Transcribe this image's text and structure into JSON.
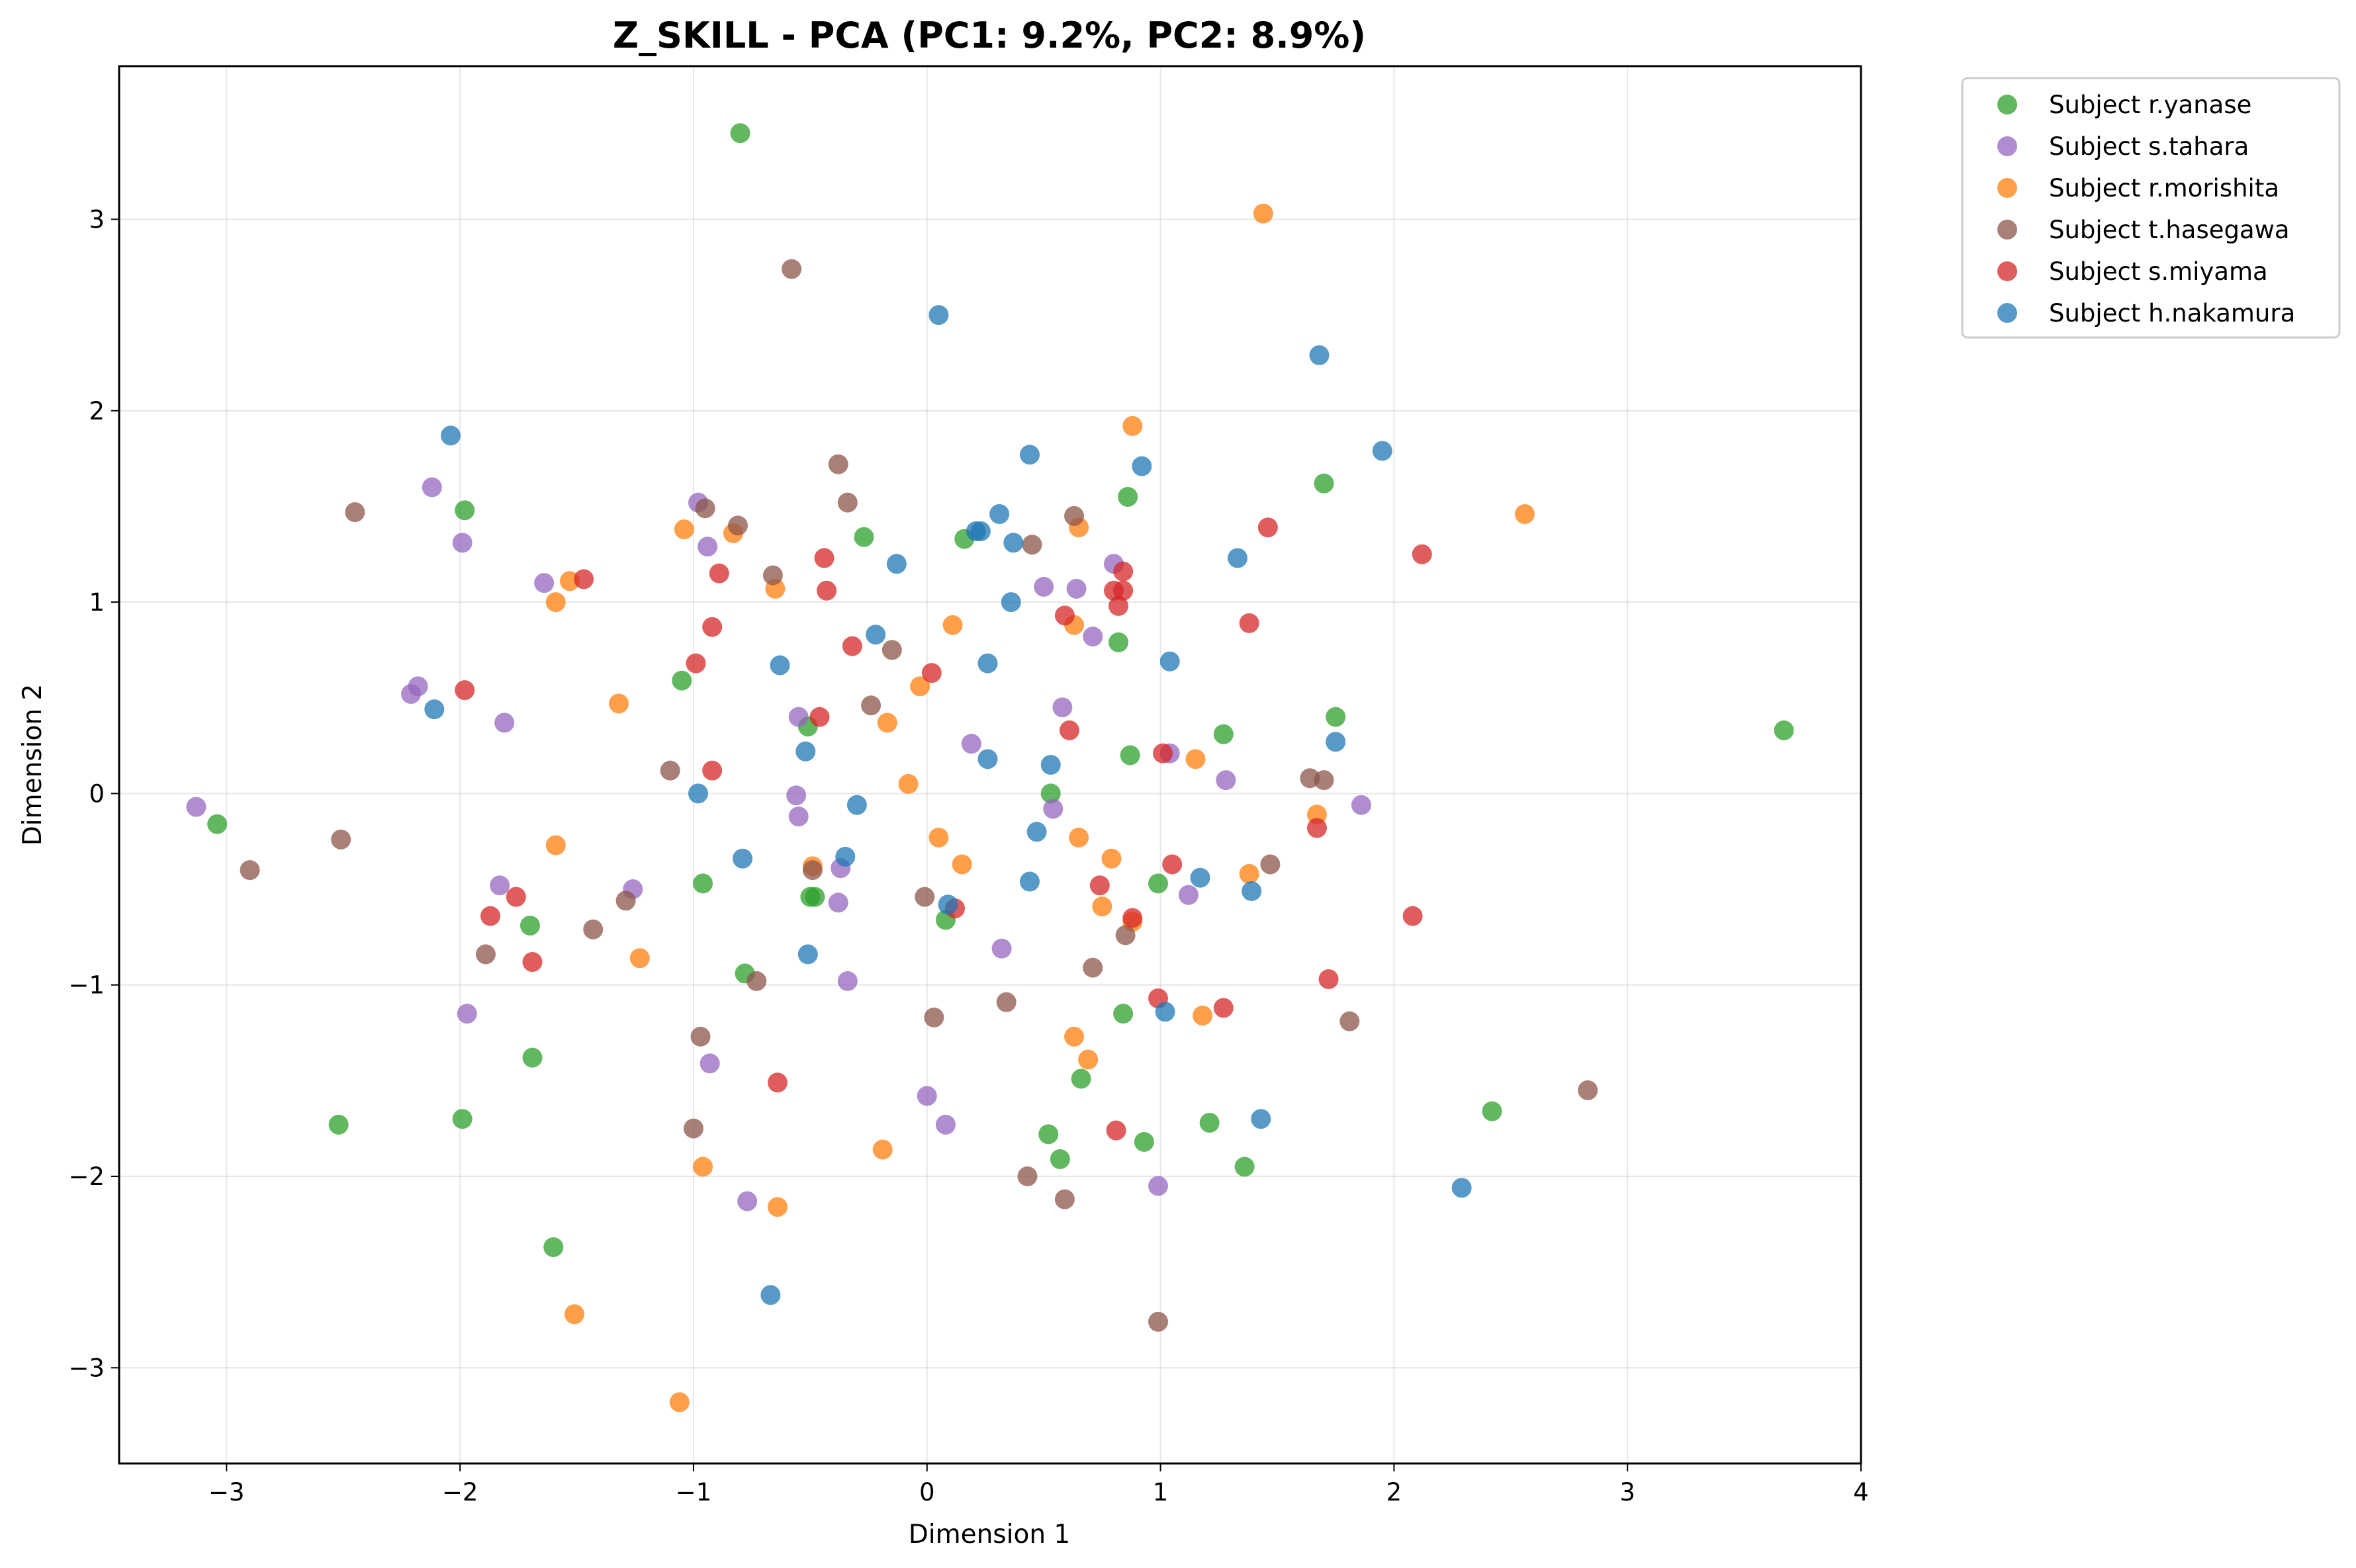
{
  "chart_data": {
    "type": "scatter",
    "title": "Z_SKILL - PCA (PC1: 9.2%, PC2: 8.9%)",
    "xlabel": "Dimension 1",
    "ylabel": "Dimension 2",
    "xlim": [
      -3.46,
      4.0
    ],
    "ylim": [
      -3.5,
      3.8
    ],
    "xticks": [
      -3,
      -2,
      -1,
      0,
      1,
      2,
      3,
      4
    ],
    "yticks": [
      -3,
      -2,
      -1,
      0,
      1,
      2,
      3
    ],
    "xtick_labels": [
      "−3",
      "−2",
      "−1",
      "0",
      "1",
      "2",
      "3",
      "4"
    ],
    "ytick_labels": [
      "−3",
      "−2",
      "−1",
      "0",
      "1",
      "2",
      "3"
    ],
    "grid": true,
    "legend_placement": "outside top-right",
    "series": [
      {
        "name": "Subject r.yanase",
        "color": "#2ca02c",
        "points": [
          [
            -0.8,
            3.45
          ],
          [
            -1.98,
            1.48
          ],
          [
            -0.27,
            1.34
          ],
          [
            0.16,
            1.33
          ],
          [
            0.86,
            1.55
          ],
          [
            1.7,
            1.62
          ],
          [
            0.82,
            0.79
          ],
          [
            -1.05,
            0.59
          ],
          [
            -0.51,
            0.35
          ],
          [
            0.87,
            0.2
          ],
          [
            1.27,
            0.31
          ],
          [
            1.75,
            0.4
          ],
          [
            3.67,
            0.33
          ],
          [
            -3.04,
            -0.16
          ],
          [
            0.53,
            0.0
          ],
          [
            -0.96,
            -0.47
          ],
          [
            -0.5,
            -0.54
          ],
          [
            -0.48,
            -0.54
          ],
          [
            0.08,
            -0.66
          ],
          [
            0.99,
            -0.47
          ],
          [
            -1.7,
            -0.69
          ],
          [
            -0.78,
            -0.94
          ],
          [
            0.84,
            -1.15
          ],
          [
            -1.69,
            -1.38
          ],
          [
            0.66,
            -1.49
          ],
          [
            -2.52,
            -1.73
          ],
          [
            -1.99,
            -1.7
          ],
          [
            0.52,
            -1.78
          ],
          [
            0.57,
            -1.91
          ],
          [
            0.93,
            -1.82
          ],
          [
            1.21,
            -1.72
          ],
          [
            1.36,
            -1.95
          ],
          [
            2.42,
            -1.66
          ],
          [
            -1.6,
            -2.37
          ]
        ]
      },
      {
        "name": "Subject s.tahara",
        "color": "#9467bd",
        "points": [
          [
            -2.12,
            1.6
          ],
          [
            -0.98,
            1.52
          ],
          [
            -1.99,
            1.31
          ],
          [
            -0.94,
            1.29
          ],
          [
            -1.64,
            1.1
          ],
          [
            0.5,
            1.08
          ],
          [
            0.64,
            1.07
          ],
          [
            0.8,
            1.2
          ],
          [
            0.71,
            0.82
          ],
          [
            -2.18,
            0.56
          ],
          [
            -2.21,
            0.52
          ],
          [
            -1.81,
            0.37
          ],
          [
            0.58,
            0.45
          ],
          [
            0.19,
            0.26
          ],
          [
            1.04,
            0.21
          ],
          [
            1.28,
            0.07
          ],
          [
            1.86,
            -0.06
          ],
          [
            -3.13,
            -0.07
          ],
          [
            -0.56,
            -0.01
          ],
          [
            -0.55,
            -0.12
          ],
          [
            0.54,
            -0.08
          ],
          [
            -0.55,
            0.4
          ],
          [
            -0.37,
            -0.39
          ],
          [
            -1.83,
            -0.48
          ],
          [
            -1.26,
            -0.5
          ],
          [
            -0.38,
            -0.57
          ],
          [
            1.12,
            -0.53
          ],
          [
            0.32,
            -0.81
          ],
          [
            -0.34,
            -0.98
          ],
          [
            -1.97,
            -1.15
          ],
          [
            -0.93,
            -1.41
          ],
          [
            0.0,
            -1.58
          ],
          [
            0.08,
            -1.73
          ],
          [
            -0.77,
            -2.13
          ],
          [
            0.99,
            -2.05
          ]
        ]
      },
      {
        "name": "Subject r.morishita",
        "color": "#ff7f0e",
        "points": [
          [
            1.44,
            3.03
          ],
          [
            0.88,
            1.92
          ],
          [
            2.56,
            1.46
          ],
          [
            -1.04,
            1.38
          ],
          [
            -0.83,
            1.36
          ],
          [
            0.65,
            1.39
          ],
          [
            -1.53,
            1.11
          ],
          [
            -1.59,
            1.0
          ],
          [
            -0.65,
            1.07
          ],
          [
            0.11,
            0.88
          ],
          [
            0.63,
            0.88
          ],
          [
            -1.32,
            0.47
          ],
          [
            -0.03,
            0.56
          ],
          [
            -0.17,
            0.37
          ],
          [
            1.15,
            0.18
          ],
          [
            -0.08,
            0.05
          ],
          [
            1.67,
            -0.11
          ],
          [
            -1.59,
            -0.27
          ],
          [
            0.05,
            -0.23
          ],
          [
            0.15,
            -0.37
          ],
          [
            0.65,
            -0.23
          ],
          [
            0.79,
            -0.34
          ],
          [
            1.38,
            -0.42
          ],
          [
            -0.49,
            -0.38
          ],
          [
            0.75,
            -0.59
          ],
          [
            0.88,
            -0.67
          ],
          [
            -1.23,
            -0.86
          ],
          [
            0.63,
            -1.27
          ],
          [
            0.69,
            -1.39
          ],
          [
            1.18,
            -1.16
          ],
          [
            -0.96,
            -1.95
          ],
          [
            -0.19,
            -1.86
          ],
          [
            -0.64,
            -2.16
          ],
          [
            -1.51,
            -2.72
          ],
          [
            -1.06,
            -3.18
          ]
        ]
      },
      {
        "name": "Subject t.hasegawa",
        "color": "#8c564b",
        "points": [
          [
            -0.58,
            2.74
          ],
          [
            -2.45,
            1.47
          ],
          [
            -0.38,
            1.72
          ],
          [
            -0.95,
            1.49
          ],
          [
            -0.34,
            1.52
          ],
          [
            -0.81,
            1.4
          ],
          [
            0.63,
            1.45
          ],
          [
            0.45,
            1.3
          ],
          [
            -0.66,
            1.14
          ],
          [
            -0.15,
            0.75
          ],
          [
            -0.24,
            0.46
          ],
          [
            -1.1,
            0.12
          ],
          [
            1.64,
            0.08
          ],
          [
            1.7,
            0.07
          ],
          [
            -2.51,
            -0.24
          ],
          [
            -2.9,
            -0.4
          ],
          [
            -0.49,
            -0.4
          ],
          [
            1.47,
            -0.37
          ],
          [
            -0.01,
            -0.54
          ],
          [
            -1.29,
            -0.56
          ],
          [
            -1.43,
            -0.71
          ],
          [
            0.85,
            -0.74
          ],
          [
            -1.89,
            -0.84
          ],
          [
            0.71,
            -0.91
          ],
          [
            -0.73,
            -0.98
          ],
          [
            0.34,
            -1.09
          ],
          [
            0.03,
            -1.17
          ],
          [
            1.81,
            -1.19
          ],
          [
            -0.97,
            -1.27
          ],
          [
            -1.0,
            -1.75
          ],
          [
            2.83,
            -1.55
          ],
          [
            0.43,
            -2.0
          ],
          [
            0.59,
            -2.12
          ],
          [
            0.99,
            -2.76
          ]
        ]
      },
      {
        "name": "Subject s.miyama",
        "color": "#d62728",
        "points": [
          [
            -1.47,
            1.12
          ],
          [
            -0.89,
            1.15
          ],
          [
            -0.44,
            1.23
          ],
          [
            1.46,
            1.39
          ],
          [
            2.12,
            1.25
          ],
          [
            -0.43,
            1.06
          ],
          [
            0.59,
            0.93
          ],
          [
            0.8,
            1.06
          ],
          [
            0.84,
            1.16
          ],
          [
            0.84,
            1.06
          ],
          [
            0.82,
            0.98
          ],
          [
            -0.92,
            0.87
          ],
          [
            1.38,
            0.89
          ],
          [
            -0.32,
            0.77
          ],
          [
            -0.99,
            0.68
          ],
          [
            0.02,
            0.63
          ],
          [
            -1.98,
            0.54
          ],
          [
            -0.46,
            0.4
          ],
          [
            0.61,
            0.33
          ],
          [
            1.01,
            0.21
          ],
          [
            -0.92,
            0.12
          ],
          [
            1.67,
            -0.18
          ],
          [
            1.05,
            -0.37
          ],
          [
            0.74,
            -0.48
          ],
          [
            0.12,
            -0.6
          ],
          [
            0.88,
            -0.65
          ],
          [
            2.08,
            -0.64
          ],
          [
            -1.87,
            -0.64
          ],
          [
            -1.76,
            -0.54
          ],
          [
            -1.69,
            -0.88
          ],
          [
            1.72,
            -0.97
          ],
          [
            0.99,
            -1.07
          ],
          [
            1.27,
            -1.12
          ],
          [
            -0.64,
            -1.51
          ],
          [
            0.81,
            -1.76
          ]
        ]
      },
      {
        "name": "Subject h.nakamura",
        "color": "#1f77b4",
        "points": [
          [
            0.05,
            2.5
          ],
          [
            1.68,
            2.29
          ],
          [
            -2.04,
            1.87
          ],
          [
            0.44,
            1.77
          ],
          [
            0.92,
            1.71
          ],
          [
            1.95,
            1.79
          ],
          [
            0.31,
            1.46
          ],
          [
            0.21,
            1.37
          ],
          [
            0.23,
            1.37
          ],
          [
            0.37,
            1.31
          ],
          [
            1.33,
            1.23
          ],
          [
            -0.13,
            1.2
          ],
          [
            0.36,
            1.0
          ],
          [
            -0.22,
            0.83
          ],
          [
            0.26,
            0.68
          ],
          [
            1.04,
            0.69
          ],
          [
            -0.63,
            0.67
          ],
          [
            -2.11,
            0.44
          ],
          [
            -0.52,
            0.22
          ],
          [
            0.26,
            0.18
          ],
          [
            0.53,
            0.15
          ],
          [
            1.75,
            0.27
          ],
          [
            -0.98,
            0.0
          ],
          [
            -0.3,
            -0.06
          ],
          [
            -0.35,
            -0.33
          ],
          [
            0.47,
            -0.2
          ],
          [
            -0.79,
            -0.34
          ],
          [
            0.44,
            -0.46
          ],
          [
            1.17,
            -0.44
          ],
          [
            0.09,
            -0.58
          ],
          [
            1.39,
            -0.51
          ],
          [
            -0.51,
            -0.84
          ],
          [
            1.02,
            -1.14
          ],
          [
            1.43,
            -1.7
          ],
          [
            -0.67,
            -2.62
          ],
          [
            2.29,
            -2.06
          ]
        ]
      }
    ]
  }
}
